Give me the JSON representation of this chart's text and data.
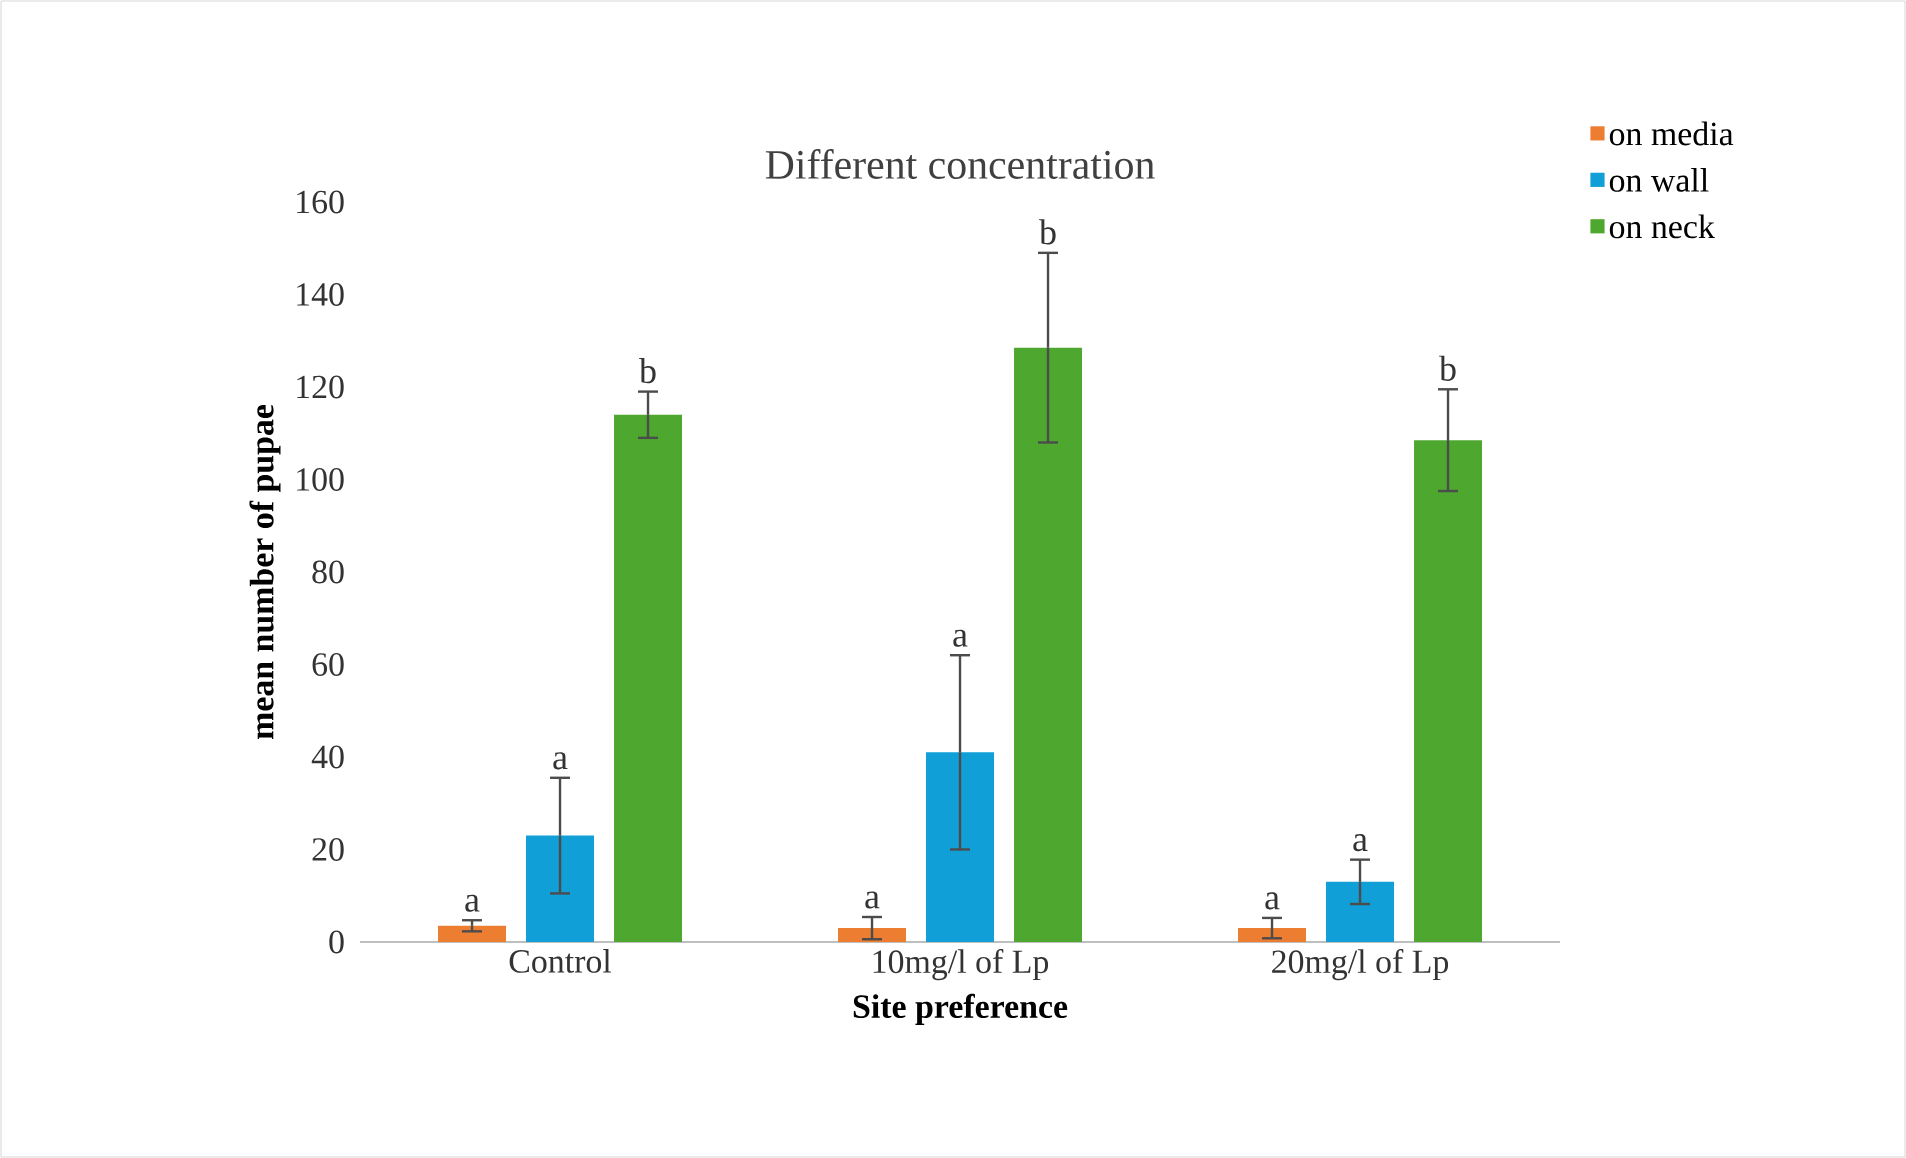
{
  "chart_data": {
    "type": "bar",
    "title": "Different concentration",
    "xlabel": "Site preference",
    "ylabel": "mean number of pupae",
    "categories": [
      "Control",
      "10mg/l of Lp",
      "20mg/l of Lp"
    ],
    "series": [
      {
        "name": "on media",
        "color": "#ed7d31",
        "values": [
          3.5,
          3,
          3
        ],
        "errors": [
          1.2,
          2.4,
          2.2
        ]
      },
      {
        "name": "on wall",
        "color": "#119fd8",
        "values": [
          23,
          41,
          13
        ],
        "errors": [
          12.5,
          21,
          4.8
        ]
      },
      {
        "name": "on neck",
        "color": "#4ea72e",
        "values": [
          114,
          128.5,
          108.5
        ],
        "errors": [
          5,
          20.5,
          11
        ]
      }
    ],
    "ylim": [
      0,
      160
    ],
    "yticks": [
      0,
      20,
      40,
      60,
      80,
      100,
      120,
      140,
      160
    ],
    "annotations": [
      "a",
      "a",
      "b",
      "a",
      "a",
      "b",
      "a",
      "a",
      "b"
    ],
    "grid": false,
    "legend": "top right"
  }
}
